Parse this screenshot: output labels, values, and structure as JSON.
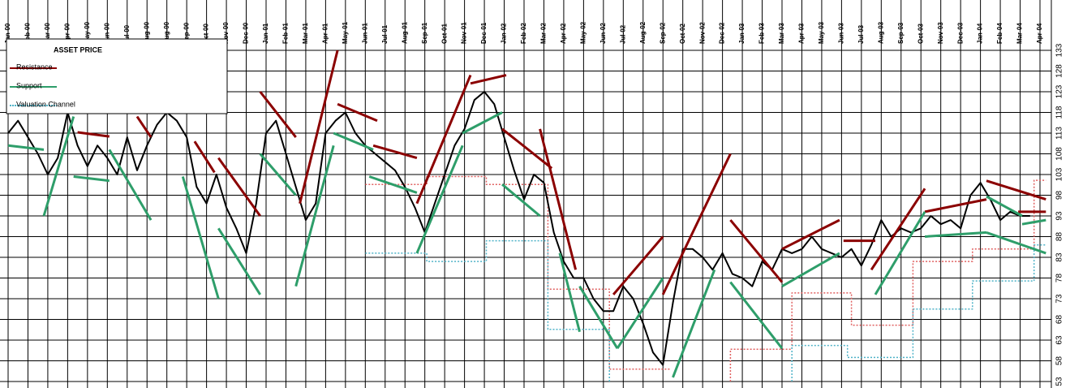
{
  "chart_data": {
    "type": "line",
    "title": "ASSET PRICE",
    "categories": [
      "Jan-00",
      "Feb-00",
      "Mar-00",
      "Apr-00",
      "May-00",
      "Jun-00",
      "Jul-00",
      "Aug-00",
      "Aug-00",
      "Sep-00",
      "Oct-00",
      "Nov-00",
      "Dec-00",
      "Jan-01",
      "Feb-01",
      "Mar-01",
      "Apr-01",
      "May-01",
      "Jun-01",
      "Jul-01",
      "Aug-01",
      "Sep-01",
      "Oct-01",
      "Nov-01",
      "Dec-01",
      "Jan-02",
      "Feb-02",
      "Mar-02",
      "Apr-02",
      "May-02",
      "Jun-02",
      "Jul-02",
      "Aug-02",
      "Sep-02",
      "Oct-02",
      "Nov-02",
      "Dec-02",
      "Jan-03",
      "Feb-03",
      "Mar-03",
      "Apr-03",
      "May-03",
      "Jun-03",
      "Jul-03",
      "Aug-03",
      "Sep-03",
      "Oct-03",
      "Nov-03",
      "Dec-03",
      "Jan-04",
      "Feb-04",
      "Mar-04",
      "Apr-04"
    ],
    "xlim": [
      0,
      52
    ],
    "ylim": [
      53,
      133
    ],
    "yticks": [
      53,
      58,
      63,
      68,
      73,
      78,
      83,
      88,
      93,
      98,
      103,
      108,
      113,
      118,
      123,
      128,
      133
    ],
    "grid": true,
    "legend": "upper-left",
    "price": {
      "color": "#000000",
      "x": [
        0,
        0.5,
        1,
        1.5,
        2,
        2.5,
        3,
        3.5,
        4,
        4.5,
        5,
        5.5,
        6,
        6.5,
        7,
        7.5,
        8,
        8.5,
        9,
        9.5,
        10,
        10.5,
        11,
        11.5,
        12,
        12.5,
        13,
        13.5,
        14,
        14.5,
        15,
        15.5,
        16,
        16.5,
        17,
        17.5,
        18,
        18.5,
        19,
        19.5,
        20,
        20.5,
        21,
        21.5,
        22,
        22.5,
        23,
        23.5,
        24,
        24.5,
        25,
        25.5,
        26,
        26.5,
        27,
        27.5,
        28,
        28.5,
        29,
        29.5,
        30,
        30.5,
        31,
        31.5,
        32,
        32.5,
        33,
        33.5,
        34,
        34.5,
        35,
        35.5,
        36,
        36.5,
        37,
        37.5,
        38,
        38.5,
        39,
        39.5,
        40,
        40.5,
        41,
        41.5,
        42,
        42.5,
        43,
        43.5,
        44,
        44.5,
        45,
        45.5,
        46,
        46.5,
        47,
        47.5,
        48,
        48.5,
        49,
        49.5,
        50,
        50.5,
        51,
        51.5
      ],
      "values": [
        113,
        116,
        112,
        108,
        103,
        107,
        118,
        110,
        105,
        110,
        107,
        103,
        112,
        104,
        110,
        115,
        118,
        116,
        112,
        100,
        96,
        103,
        95,
        90,
        84,
        96,
        113,
        116,
        108,
        100,
        92,
        96,
        113,
        116,
        118,
        113,
        110,
        108,
        106,
        104,
        100,
        95,
        89,
        96,
        103,
        110,
        114,
        121,
        123,
        120,
        112,
        104,
        97,
        103,
        101,
        89,
        82,
        78,
        78,
        73,
        70,
        70,
        76,
        73,
        67,
        60,
        57,
        72,
        85,
        85,
        83,
        80,
        84,
        79,
        78,
        76,
        82,
        80,
        85,
        84,
        85,
        88,
        85,
        84,
        83,
        85,
        81,
        86,
        92,
        88,
        90,
        89,
        90,
        93,
        91,
        92,
        90,
        98,
        101,
        97,
        92,
        94,
        93,
        93
      ]
    },
    "series": [
      {
        "name": "Resistance",
        "color": "#8b0000",
        "x": [
          3.5,
          5.1,
          null,
          6.5,
          7.2,
          null,
          9.4,
          10.4,
          null,
          10.6,
          12.7,
          null,
          12.7,
          14.5,
          null,
          14.7,
          16.6,
          null,
          16.6,
          18.6,
          null,
          18.4,
          20.6,
          null,
          20.6,
          23.3,
          null,
          23.3,
          25.1,
          null,
          24.9,
          27.4,
          null,
          26.8,
          28.6,
          null,
          30.5,
          33,
          null,
          33,
          36.4,
          null,
          36.4,
          39,
          null,
          39,
          41.9,
          null,
          42.1,
          43.7,
          null,
          43.5,
          46.2,
          null,
          46.2,
          49.3,
          null,
          49.3,
          52.3,
          null,
          50.9,
          52.3
        ],
        "values": [
          113.2,
          112.2,
          null,
          117,
          112,
          null,
          111,
          103.5,
          null,
          107,
          93,
          null,
          123,
          112,
          null,
          96,
          133,
          null,
          120,
          116,
          null,
          110,
          107,
          null,
          96,
          127,
          null,
          125,
          127,
          null,
          114,
          104.5,
          null,
          114,
          80,
          null,
          74,
          88,
          null,
          74,
          108,
          null,
          92,
          77,
          null,
          85,
          92,
          null,
          87,
          87,
          null,
          80,
          99.6,
          null,
          94,
          97,
          null,
          101.5,
          97,
          null,
          94,
          94
        ]
      },
      {
        "name": "Support",
        "color": "#2e9e6a",
        "x": [
          0,
          1.8,
          null,
          1.8,
          3.3,
          null,
          3.3,
          5.1,
          null,
          5.1,
          7.2,
          null,
          8.8,
          10.6,
          null,
          10.6,
          12.7,
          null,
          12.7,
          14.5,
          null,
          14.5,
          16.4,
          null,
          16.4,
          18.4,
          null,
          18.2,
          20.6,
          null,
          20.6,
          22.9,
          null,
          22.9,
          24.9,
          null,
          24.9,
          26.8,
          null,
          27.8,
          28.8,
          null,
          28.8,
          30.7,
          null,
          30.7,
          33,
          null,
          33.5,
          35.6,
          null,
          36.4,
          39,
          null,
          39,
          41.9,
          null,
          43.7,
          46.2,
          null,
          46.2,
          49.3,
          null,
          49.3,
          52.3,
          null,
          49.3,
          51.1,
          null,
          51.1,
          52.3
        ],
        "values": [
          110,
          109,
          null,
          93,
          117,
          null,
          102.5,
          101.5,
          null,
          109,
          92,
          null,
          102.5,
          73,
          null,
          90,
          74,
          null,
          108,
          98,
          null,
          76,
          110,
          null,
          113,
          109,
          null,
          102.5,
          98.6,
          null,
          84,
          110,
          null,
          113,
          118,
          null,
          100.6,
          93,
          null,
          84,
          65,
          null,
          76,
          61,
          null,
          61,
          78,
          null,
          54,
          80,
          null,
          77,
          61,
          null,
          76,
          84,
          null,
          74,
          94,
          null,
          88,
          89,
          null,
          89,
          84,
          null,
          97.7,
          93,
          null,
          91,
          92
        ]
      },
      {
        "name": "Valuation Channel",
        "color": "#4fb3c8",
        "x": [
          18,
          21.1,
          21.1,
          24.1,
          24.1,
          27.2,
          27.2,
          30.3,
          30.3,
          null,
          39.5,
          39.5,
          42.3,
          42.3,
          45.6,
          45.6,
          48.6,
          48.6,
          51.7,
          51.7,
          52.3
        ],
        "values": [
          84,
          84,
          82,
          82,
          87,
          87,
          65.6,
          65.6,
          53,
          null,
          53,
          61.7,
          61.7,
          58.8,
          58.8,
          70.5,
          70.5,
          77.3,
          77.3,
          86,
          86
        ]
      }
    ],
    "channel_upper": {
      "color": "#e06060",
      "x": [
        18,
        21.1,
        21.1,
        24.1,
        24.1,
        27.2,
        27.2,
        30.3,
        30.3,
        33.4,
        null,
        36.4,
        36.4,
        39.5,
        39.5,
        42.5,
        42.5,
        45.6,
        45.6,
        48.6,
        48.6,
        51.7,
        51.7,
        52.3
      ],
      "values": [
        100.6,
        100.6,
        102.5,
        102.5,
        100.6,
        100.6,
        75.3,
        75.3,
        56,
        56,
        null,
        53,
        60.8,
        60.8,
        74.4,
        74.4,
        66.6,
        66.6,
        82,
        82,
        85,
        85,
        101.6,
        101.6
      ]
    }
  }
}
